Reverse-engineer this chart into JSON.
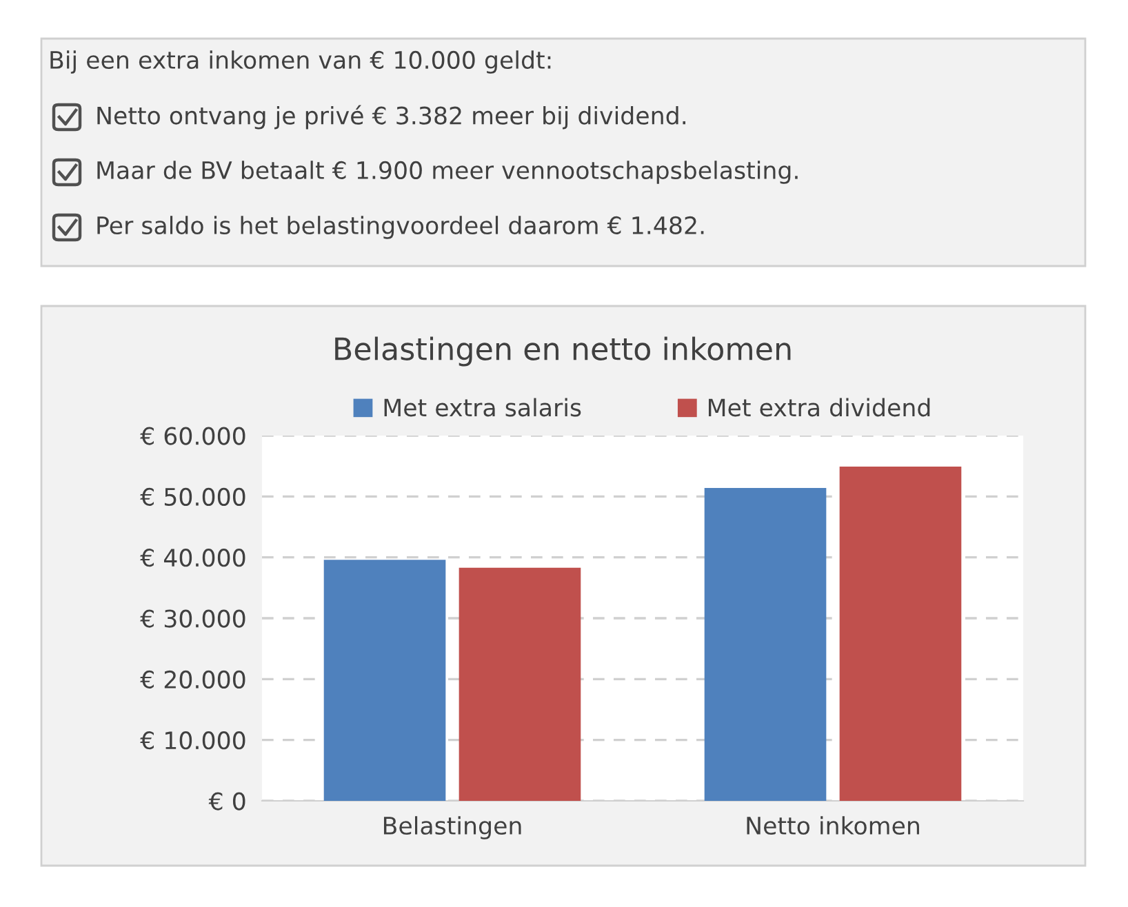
{
  "chart_data": [
    {
      "type": "other",
      "title": "Bij een extra inkomen van € 10.000 geldt:",
      "annotations": [
        "Netto ontvang je privé € 3.382 meer bij dividend.",
        "Maar de BV betaalt € 1.900 meer vennootschapsbelasting.",
        "Per saldo is het belastingvoordeel daarom € 1.482."
      ]
    },
    {
      "type": "bar",
      "title": "Belastingen en netto inkomen",
      "categories": [
        "Belastingen",
        "Netto inkomen"
      ],
      "series": [
        {
          "name": "Met extra salaris",
          "color": "#4f81bd",
          "values": [
            39600,
            51400
          ]
        },
        {
          "name": "Met extra dividend",
          "color": "#c0504d",
          "values": [
            38300,
            54900
          ]
        }
      ],
      "ylim": [
        0,
        60000
      ],
      "yticks": [
        {
          "value": 0,
          "label": "€ 0"
        },
        {
          "value": 10000,
          "label": "€ 10.000"
        },
        {
          "value": 20000,
          "label": "€ 20.000"
        },
        {
          "value": 30000,
          "label": "€ 30.000"
        },
        {
          "value": 40000,
          "label": "€ 40.000"
        },
        {
          "value": 50000,
          "label": "€ 50.000"
        },
        {
          "value": 60000,
          "label": "€ 60.000"
        }
      ],
      "grid": "y",
      "legend": "top"
    }
  ]
}
